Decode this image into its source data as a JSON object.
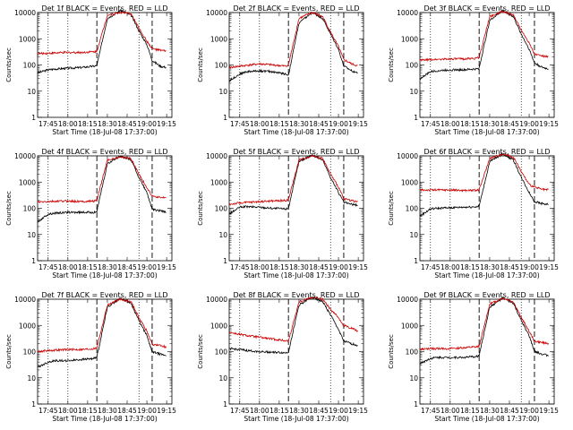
{
  "page_title": "",
  "chart_data": [
    {
      "type": "line",
      "title": "Det 1f BLACK = Events, RED = LLD",
      "xlabel": "Start Time (18-Jul-08 17:37:00)",
      "ylabel": "Counts/sec",
      "yscale": "log",
      "ylim": [
        1,
        10000
      ],
      "ytick_labels": [
        "1",
        "10",
        "100",
        "1000",
        "10000"
      ],
      "xtick_labels": [
        "17:45",
        "18:00",
        "18:15",
        "18:30",
        "18:45",
        "19:00",
        "19:15"
      ],
      "dotted_lines_x": [
        "17:45",
        "18:00",
        "18:54"
      ],
      "dashed_lines_x": [
        "18:22",
        "19:04"
      ],
      "series": [
        {
          "color": "#000000",
          "x": [
            "17:37",
            "17:45",
            "17:50",
            "18:00",
            "18:10",
            "18:20",
            "18:22",
            "18:30",
            "18:40",
            "18:48",
            "18:54",
            "19:00",
            "19:04",
            "19:10",
            "19:15"
          ],
          "values": [
            50,
            65,
            70,
            75,
            80,
            90,
            95,
            6000,
            12000,
            8000,
            2000,
            600,
            150,
            90,
            80
          ]
        },
        {
          "color": "#cc0000",
          "x": [
            "17:37",
            "17:45",
            "18:00",
            "18:10",
            "18:20",
            "18:22",
            "18:30",
            "18:40",
            "18:48",
            "18:54",
            "19:00",
            "19:04",
            "19:10",
            "19:15"
          ],
          "values": [
            270,
            280,
            300,
            300,
            320,
            330,
            8000,
            10000,
            9000,
            2500,
            800,
            420,
            360,
            340
          ]
        }
      ]
    },
    {
      "type": "line",
      "title": "Det 2f BLACK = Events, RED = LLD",
      "xlabel": "Start Time (18-Jul-08 17:37:00)",
      "ylabel": "Counts/sec",
      "yscale": "log",
      "ylim": [
        1,
        10000
      ],
      "ytick_labels": [
        "1",
        "10",
        "100",
        "1000",
        "10000"
      ],
      "xtick_labels": [
        "17:45",
        "18:00",
        "18:15",
        "18:30",
        "18:45",
        "19:00",
        "19:15"
      ],
      "dotted_lines_x": [
        "17:45",
        "18:00",
        "18:54"
      ],
      "dashed_lines_x": [
        "18:22",
        "19:04"
      ],
      "series": [
        {
          "color": "#000000",
          "x": [
            "17:37",
            "17:45",
            "17:50",
            "18:00",
            "18:10",
            "18:20",
            "18:22",
            "18:30",
            "18:40",
            "18:48",
            "18:54",
            "19:00",
            "19:04",
            "19:10",
            "19:15"
          ],
          "values": [
            25,
            45,
            55,
            60,
            55,
            45,
            40,
            4000,
            10000,
            6000,
            1500,
            400,
            90,
            60,
            50
          ]
        },
        {
          "color": "#cc0000",
          "x": [
            "17:37",
            "17:45",
            "18:00",
            "18:10",
            "18:20",
            "18:22",
            "18:30",
            "18:40",
            "18:48",
            "18:54",
            "19:00",
            "19:04",
            "19:10",
            "19:15"
          ],
          "values": [
            80,
            90,
            110,
            100,
            90,
            100,
            6000,
            10000,
            7000,
            1800,
            500,
            160,
            110,
            90
          ]
        }
      ]
    },
    {
      "type": "line",
      "title": "Det 3f BLACK = Events, RED = LLD",
      "xlabel": "Start Time (18-Jul-08 17:37:00)",
      "ylabel": "Counts/sec",
      "yscale": "log",
      "ylim": [
        1,
        10000
      ],
      "ytick_labels": [
        "1",
        "10",
        "100",
        "1000",
        "10000"
      ],
      "xtick_labels": [
        "17:45",
        "18:00",
        "18:15",
        "18:30",
        "18:45",
        "19:00",
        "19:15"
      ],
      "dotted_lines_x": [
        "17:45",
        "18:00",
        "18:54"
      ],
      "dashed_lines_x": [
        "18:22",
        "19:04"
      ],
      "series": [
        {
          "color": "#000000",
          "x": [
            "17:37",
            "17:45",
            "17:50",
            "18:00",
            "18:10",
            "18:20",
            "18:22",
            "18:30",
            "18:40",
            "18:48",
            "18:54",
            "19:00",
            "19:04",
            "19:10",
            "19:15"
          ],
          "values": [
            30,
            55,
            60,
            65,
            65,
            70,
            75,
            5000,
            12000,
            7000,
            1500,
            400,
            120,
            80,
            70
          ]
        },
        {
          "color": "#cc0000",
          "x": [
            "17:37",
            "17:45",
            "18:00",
            "18:10",
            "18:20",
            "18:22",
            "18:30",
            "18:40",
            "18:48",
            "18:54",
            "19:00",
            "19:04",
            "19:10",
            "19:15"
          ],
          "values": [
            150,
            160,
            170,
            170,
            180,
            190,
            7000,
            11000,
            8000,
            2200,
            700,
            260,
            220,
            200
          ]
        }
      ]
    },
    {
      "type": "line",
      "title": "Det 4f BLACK = Events, RED = LLD",
      "xlabel": "Start Time (18-Jul-08 17:37:00)",
      "ylabel": "Counts/sec",
      "yscale": "log",
      "ylim": [
        1,
        10000
      ],
      "ytick_labels": [
        "1",
        "10",
        "100",
        "1000",
        "10000"
      ],
      "xtick_labels": [
        "17:45",
        "18:00",
        "18:15",
        "18:30",
        "18:45",
        "19:00",
        "19:15"
      ],
      "dotted_lines_x": [
        "17:45",
        "18:00",
        "18:54"
      ],
      "dashed_lines_x": [
        "18:22",
        "19:04"
      ],
      "series": [
        {
          "color": "#000000",
          "x": [
            "17:37",
            "17:45",
            "17:50",
            "18:00",
            "18:10",
            "18:20",
            "18:22",
            "18:30",
            "18:40",
            "18:48",
            "18:54",
            "19:00",
            "19:04",
            "19:10",
            "19:15"
          ],
          "values": [
            30,
            60,
            65,
            70,
            70,
            70,
            75,
            5000,
            10000,
            7000,
            1500,
            400,
            90,
            80,
            70
          ]
        },
        {
          "color": "#cc0000",
          "x": [
            "17:37",
            "17:45",
            "18:00",
            "18:10",
            "18:20",
            "18:22",
            "18:30",
            "18:40",
            "18:48",
            "18:54",
            "19:00",
            "19:04",
            "19:10",
            "19:15"
          ],
          "values": [
            170,
            180,
            190,
            180,
            190,
            200,
            7000,
            9000,
            8000,
            2000,
            600,
            300,
            260,
            240
          ]
        }
      ]
    },
    {
      "type": "line",
      "title": "Det 5f BLACK = Events, RED = LLD",
      "xlabel": "Start Time (18-Jul-08 17:37:00)",
      "ylabel": "Counts/sec",
      "yscale": "log",
      "ylim": [
        1,
        10000
      ],
      "ytick_labels": [
        "1",
        "10",
        "100",
        "1000",
        "10000"
      ],
      "xtick_labels": [
        "17:45",
        "18:00",
        "18:15",
        "18:30",
        "18:45",
        "19:00",
        "19:15"
      ],
      "dotted_lines_x": [
        "17:45",
        "18:00",
        "18:54"
      ],
      "dashed_lines_x": [
        "18:22",
        "19:04"
      ],
      "series": [
        {
          "color": "#000000",
          "x": [
            "17:37",
            "17:45",
            "17:50",
            "18:00",
            "18:10",
            "18:20",
            "18:22",
            "18:30",
            "18:40",
            "18:48",
            "18:54",
            "19:00",
            "19:04",
            "19:10",
            "19:15"
          ],
          "values": [
            60,
            110,
            115,
            110,
            100,
            95,
            100,
            6000,
            11000,
            7000,
            1500,
            400,
            170,
            140,
            130
          ]
        },
        {
          "color": "#cc0000",
          "x": [
            "17:37",
            "17:45",
            "18:00",
            "18:10",
            "18:20",
            "18:22",
            "18:30",
            "18:40",
            "18:48",
            "18:54",
            "19:00",
            "19:04",
            "19:10",
            "19:15"
          ],
          "values": [
            140,
            160,
            180,
            190,
            200,
            210,
            7000,
            10000,
            8000,
            2000,
            650,
            230,
            200,
            170
          ]
        }
      ]
    },
    {
      "type": "line",
      "title": "Det 6f BLACK = Events, RED = LLD",
      "xlabel": "Start Time (18-Jul-08 17:37:00)",
      "ylabel": "Counts/sec",
      "yscale": "log",
      "ylim": [
        1,
        10000
      ],
      "ytick_labels": [
        "1",
        "10",
        "100",
        "1000",
        "10000"
      ],
      "xtick_labels": [
        "17:45",
        "18:00",
        "18:15",
        "18:30",
        "18:45",
        "19:00",
        "19:15"
      ],
      "dotted_lines_x": [
        "17:45",
        "18:00",
        "18:54"
      ],
      "dashed_lines_x": [
        "18:22",
        "19:04"
      ],
      "series": [
        {
          "color": "#000000",
          "x": [
            "17:37",
            "17:45",
            "17:50",
            "18:00",
            "18:10",
            "18:20",
            "18:22",
            "18:30",
            "18:40",
            "18:48",
            "18:54",
            "19:00",
            "19:04",
            "19:10",
            "19:15"
          ],
          "values": [
            50,
            95,
            100,
            105,
            110,
            115,
            120,
            6000,
            12000,
            7000,
            1500,
            400,
            180,
            150,
            140
          ]
        },
        {
          "color": "#cc0000",
          "x": [
            "17:37",
            "17:45",
            "18:00",
            "18:10",
            "18:20",
            "18:22",
            "18:30",
            "18:40",
            "18:48",
            "18:54",
            "19:00",
            "19:04",
            "19:10",
            "19:15"
          ],
          "values": [
            500,
            500,
            500,
            480,
            490,
            500,
            8000,
            12000,
            9000,
            2500,
            800,
            650,
            520,
            500
          ]
        }
      ]
    },
    {
      "type": "line",
      "title": "Det 7f BLACK = Events, RED = LLD",
      "xlabel": "Start Time (18-Jul-08 17:37:00)",
      "ylabel": "Counts/sec",
      "yscale": "log",
      "ylim": [
        1,
        10000
      ],
      "ytick_labels": [
        "1",
        "10",
        "100",
        "1000",
        "10000"
      ],
      "xtick_labels": [
        "17:45",
        "18:00",
        "18:15",
        "18:30",
        "18:45",
        "19:00",
        "19:15"
      ],
      "dotted_lines_x": [
        "17:45",
        "18:00",
        "18:54"
      ],
      "dashed_lines_x": [
        "18:22",
        "19:04"
      ],
      "series": [
        {
          "color": "#000000",
          "x": [
            "17:37",
            "17:45",
            "17:50",
            "18:00",
            "18:10",
            "18:20",
            "18:22",
            "18:30",
            "18:40",
            "18:48",
            "18:54",
            "19:00",
            "19:04",
            "19:10",
            "19:15"
          ],
          "values": [
            25,
            40,
            45,
            45,
            50,
            55,
            60,
            5000,
            11000,
            7000,
            1500,
            400,
            100,
            80,
            70
          ]
        },
        {
          "color": "#cc0000",
          "x": [
            "17:37",
            "17:45",
            "18:00",
            "18:10",
            "18:20",
            "18:22",
            "18:30",
            "18:40",
            "18:48",
            "18:54",
            "19:00",
            "19:04",
            "19:10",
            "19:15"
          ],
          "values": [
            100,
            110,
            120,
            120,
            130,
            140,
            6000,
            10000,
            8000,
            2000,
            600,
            190,
            170,
            150
          ]
        }
      ]
    },
    {
      "type": "line",
      "title": "Det 8f BLACK = Events, RED = LLD",
      "xlabel": "Start Time (18-Jul-08 17:37:00)",
      "ylabel": "Counts/sec",
      "yscale": "log",
      "ylim": [
        1,
        10000
      ],
      "ytick_labels": [
        "1",
        "10",
        "100",
        "1000",
        "10000"
      ],
      "xtick_labels": [
        "17:45",
        "18:00",
        "18:15",
        "18:30",
        "18:45",
        "19:00",
        "19:15"
      ],
      "dotted_lines_x": [
        "17:45",
        "18:00",
        "18:54"
      ],
      "dashed_lines_x": [
        "18:22",
        "19:04"
      ],
      "series": [
        {
          "color": "#000000",
          "x": [
            "17:37",
            "17:45",
            "17:50",
            "18:00",
            "18:10",
            "18:20",
            "18:22",
            "18:30",
            "18:40",
            "18:48",
            "18:54",
            "19:00",
            "19:04",
            "19:10",
            "19:15"
          ],
          "values": [
            130,
            120,
            110,
            100,
            95,
            90,
            95,
            6000,
            12000,
            8000,
            2500,
            700,
            250,
            200,
            170
          ]
        },
        {
          "color": "#cc0000",
          "x": [
            "17:37",
            "17:45",
            "18:00",
            "18:10",
            "18:20",
            "18:22",
            "18:30",
            "18:40",
            "18:48",
            "18:54",
            "19:00",
            "19:04",
            "19:10",
            "19:15"
          ],
          "values": [
            550,
            450,
            350,
            300,
            260,
            250,
            8000,
            12000,
            10000,
            4000,
            2000,
            1000,
            800,
            600
          ]
        }
      ]
    },
    {
      "type": "line",
      "title": "Det 9f BLACK = Events, RED = LLD",
      "xlabel": "Start Time (18-Jul-08 17:37:00)",
      "ylabel": "Counts/sec",
      "yscale": "log",
      "ylim": [
        1,
        10000
      ],
      "ytick_labels": [
        "1",
        "10",
        "100",
        "1000",
        "10000"
      ],
      "xtick_labels": [
        "17:45",
        "18:00",
        "18:15",
        "18:30",
        "18:45",
        "19:00",
        "19:15"
      ],
      "dotted_lines_x": [
        "17:45",
        "18:00",
        "18:54"
      ],
      "dashed_lines_x": [
        "18:22",
        "19:04"
      ],
      "series": [
        {
          "color": "#000000",
          "x": [
            "17:37",
            "17:45",
            "17:50",
            "18:00",
            "18:10",
            "18:20",
            "18:22",
            "18:30",
            "18:40",
            "18:48",
            "18:54",
            "19:00",
            "19:04",
            "19:10",
            "19:15"
          ],
          "values": [
            35,
            55,
            60,
            60,
            60,
            65,
            70,
            5000,
            11000,
            7000,
            1500,
            400,
            100,
            80,
            70
          ]
        },
        {
          "color": "#cc0000",
          "x": [
            "17:37",
            "17:45",
            "18:00",
            "18:10",
            "18:20",
            "18:22",
            "18:30",
            "18:40",
            "18:48",
            "18:54",
            "19:00",
            "19:04",
            "19:10",
            "19:15"
          ],
          "values": [
            120,
            130,
            130,
            140,
            150,
            160,
            6500,
            11000,
            8000,
            2000,
            600,
            250,
            220,
            200
          ]
        }
      ]
    }
  ]
}
